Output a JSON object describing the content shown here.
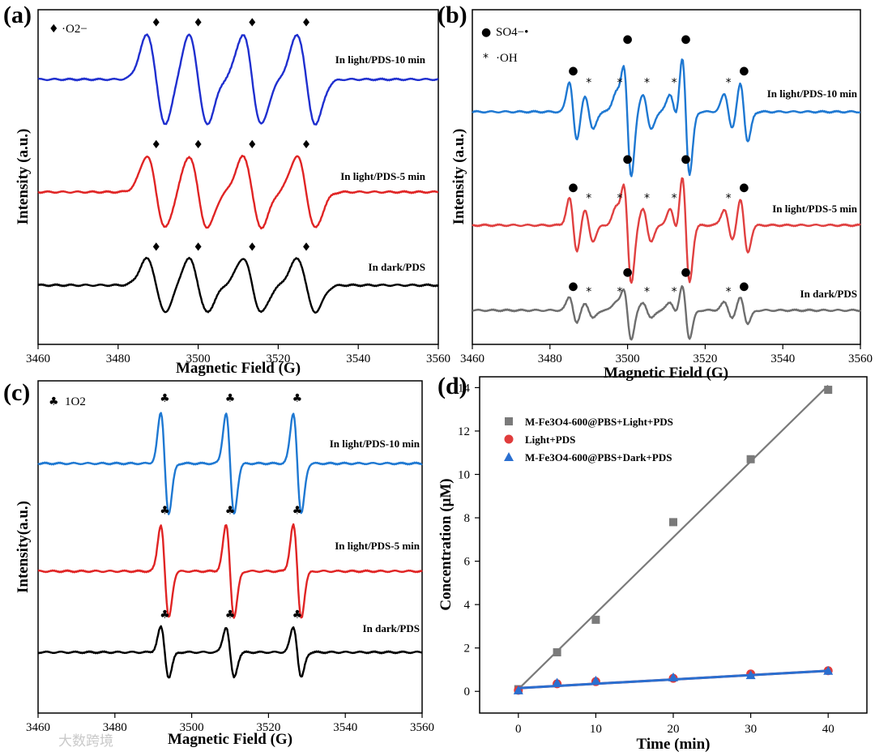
{
  "watermark": "大数跨境",
  "chart_data": [
    {
      "panel": "(a)",
      "type": "line",
      "xlabel": "Magnetic Field (G)",
      "ylabel": "Intensity (a.u.)",
      "xlim": [
        3460,
        3560
      ],
      "xticks": [
        "3460",
        "3480",
        "3500",
        "3520",
        "3540",
        "3560"
      ],
      "species_label": "·O2−",
      "species_marker": "♦",
      "series": [
        {
          "name": "In light/PDS-10 min",
          "color": "#1f2fcf",
          "peaks": [
            3489.5,
            3500,
            3513.5,
            3527
          ],
          "amplitude": 1.0
        },
        {
          "name": "In light/PDS-5 min",
          "color": "#e02424",
          "peaks": [
            3489.5,
            3500,
            3513.5,
            3527
          ],
          "amplitude": 0.8
        },
        {
          "name": "In dark/PDS",
          "color": "#000000",
          "peaks": [
            3489.5,
            3500,
            3513.5,
            3527
          ],
          "amplitude": 0.6
        }
      ]
    },
    {
      "panel": "(b)",
      "type": "line",
      "xlabel": "Magnetic Field (G)",
      "ylabel": "Intensity (a.u.)",
      "xlim": [
        3460,
        3560
      ],
      "xticks": [
        "3460",
        "3480",
        "3500",
        "3520",
        "3540",
        "3560"
      ],
      "species_labels": [
        "SO4−•",
        "·OH"
      ],
      "species_markers": [
        "●",
        "*"
      ],
      "series": [
        {
          "name": "In light/PDS-10 min",
          "color": "#1e78d2",
          "amplitude": 1.0
        },
        {
          "name": "In light/PDS-5 min",
          "color": "#e04040",
          "amplitude": 0.9
        },
        {
          "name": "In dark/PDS",
          "color": "#6e6e6e",
          "amplitude": 0.45
        }
      ],
      "so4_peaks": [
        3486,
        3500,
        3515,
        3530
      ],
      "oh_peaks": [
        3490,
        3498,
        3505,
        3512,
        3526
      ]
    },
    {
      "panel": "(c)",
      "type": "line",
      "xlabel": "Magnetic Field (G)",
      "ylabel": "Intensity(a.u.)",
      "xlim": [
        3460,
        3560
      ],
      "xticks": [
        "3460",
        "3480",
        "3500",
        "3520",
        "3540",
        "3560"
      ],
      "species_label": "1O2",
      "species_marker": "♣",
      "series": [
        {
          "name": "In light/PDS-10 min",
          "color": "#1e78d2",
          "peaks": [
            3493,
            3510,
            3527.5
          ],
          "amplitude": 1.0
        },
        {
          "name": "In light/PDS-5 min",
          "color": "#e02424",
          "peaks": [
            3493,
            3510,
            3527.5
          ],
          "amplitude": 0.92
        },
        {
          "name": "In dark/PDS",
          "color": "#000000",
          "peaks": [
            3493,
            3510,
            3527.5
          ],
          "amplitude": 0.5
        }
      ]
    },
    {
      "panel": "(d)",
      "type": "scatter",
      "xlabel": "Time (min)",
      "ylabel": "Concentration (μM)",
      "xlim": [
        -5,
        45
      ],
      "ylim": [
        -1,
        14.5
      ],
      "xticks": [
        0,
        10,
        20,
        30,
        40
      ],
      "yticks": [
        0,
        2,
        4,
        6,
        8,
        10,
        12,
        14
      ],
      "x": [
        0,
        5,
        10,
        20,
        30,
        40
      ],
      "series": [
        {
          "name": "M-Fe3O4-600@PBS+Light+PDS",
          "color": "#7a7a7a",
          "marker": "square",
          "values": [
            0.1,
            1.8,
            3.3,
            7.8,
            10.7,
            13.9
          ],
          "fit": [
            0.1,
            14.1
          ]
        },
        {
          "name": "Light+PDS",
          "color": "#e03c3c",
          "marker": "circle",
          "values": [
            0.05,
            0.35,
            0.45,
            0.6,
            0.8,
            0.95
          ],
          "fit": [
            0.15,
            0.95
          ]
        },
        {
          "name": "M-Fe3O4-600@PBS+Dark+PDS",
          "color": "#2a6fd0",
          "marker": "triangle",
          "values": [
            0.05,
            0.4,
            0.5,
            0.65,
            0.75,
            0.95
          ],
          "fit": [
            0.15,
            0.95
          ]
        }
      ]
    }
  ]
}
